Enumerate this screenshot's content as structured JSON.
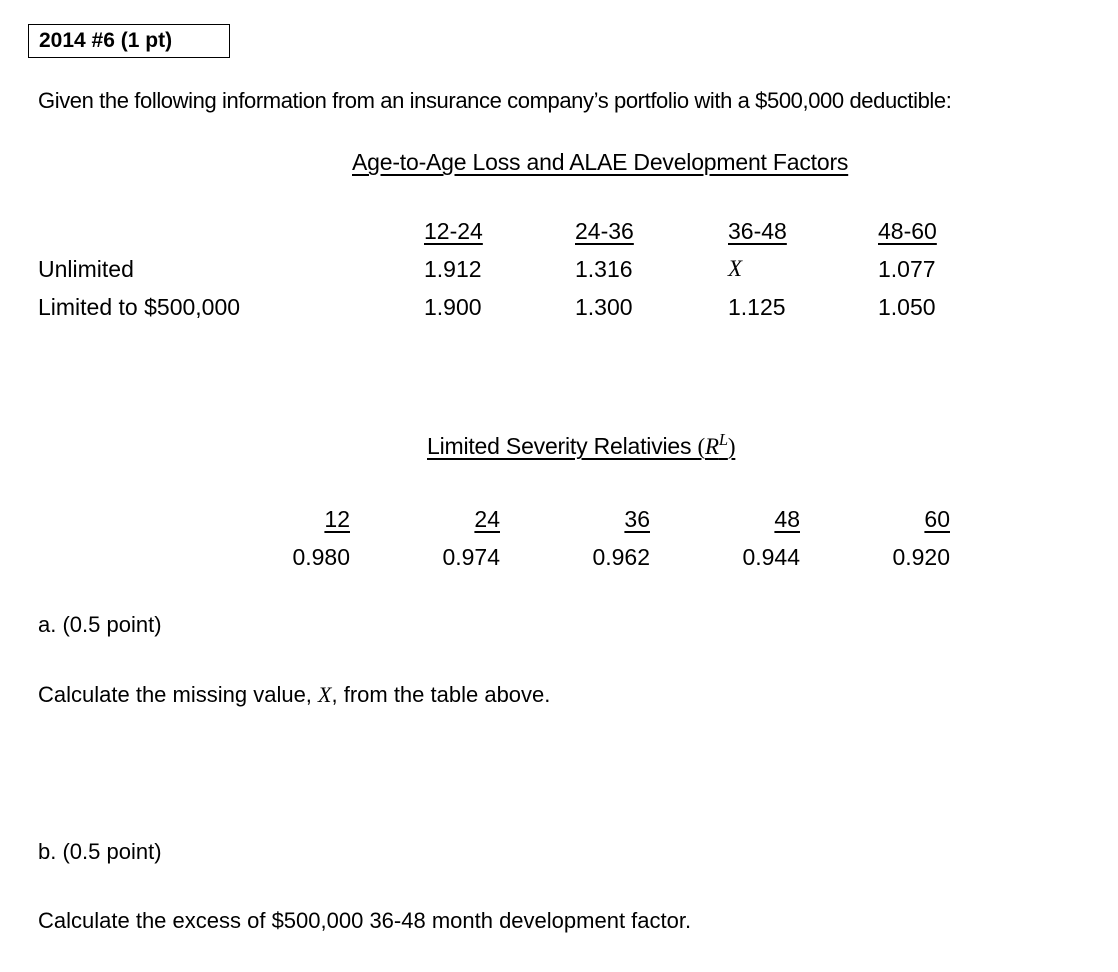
{
  "colors": {
    "background": "#ffffff",
    "text": "#000000"
  },
  "question_box": {
    "label": "2014 #6 (1 pt)"
  },
  "intro": "Given the following information from an insurance company’s portfolio with a $500,000 deductible:",
  "age_table": {
    "title": "Age-to-Age Loss and ALAE Development Factors",
    "columns": [
      "12-24",
      "24-36",
      "36-48",
      "48-60"
    ],
    "rows": [
      {
        "label": "Unlimited",
        "values": [
          "1.912",
          "1.316",
          "X",
          "1.077"
        ]
      },
      {
        "label": "Limited to $500,000",
        "values": [
          "1.900",
          "1.300",
          "1.125",
          "1.050"
        ]
      }
    ]
  },
  "severity_table": {
    "title_text": "Limited Severity Relativies ",
    "title_open": "(",
    "title_var": "R",
    "title_sup": "L",
    "title_close": ")",
    "columns": [
      "12",
      "24",
      "36",
      "48",
      "60"
    ],
    "values": [
      "0.980",
      "0.974",
      "0.962",
      "0.944",
      "0.920"
    ]
  },
  "part_a": {
    "label": "a. (0.5 point)",
    "prompt_before": "Calculate the missing value, ",
    "prompt_var": "X",
    "prompt_after": ", from the table above."
  },
  "part_b": {
    "label": "b. (0.5 point)",
    "prompt": "Calculate the excess of $500,000 36-48 month development factor."
  }
}
